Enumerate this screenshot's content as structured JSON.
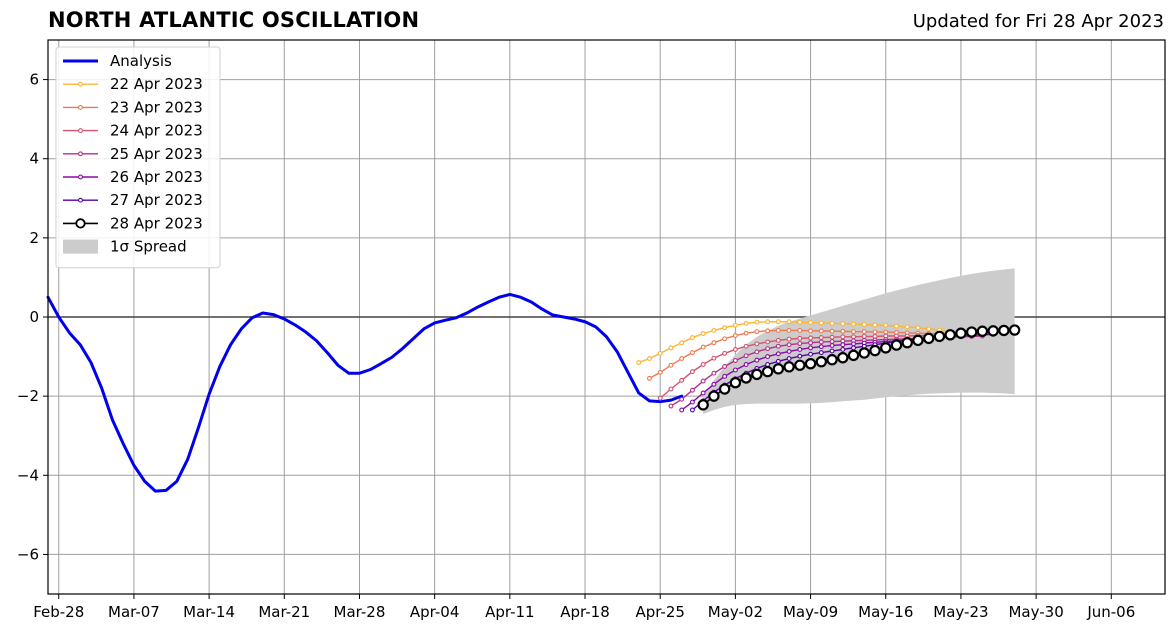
{
  "header": {
    "title": "NORTH ATLANTIC OSCILLATION",
    "subtitle": "Updated for Fri 28 Apr 2023"
  },
  "chart_data": {
    "type": "line",
    "title": "NORTH ATLANTIC OSCILLATION",
    "subtitle": "Updated for Fri 28 Apr 2023",
    "xlabel": "",
    "ylabel": "",
    "xlim": [
      "2023-02-27",
      "2023-06-11"
    ],
    "ylim": [
      -7,
      7
    ],
    "grid": true,
    "legend_position": "top-left",
    "x_ticks": [
      "2023-02-28",
      "2023-03-07",
      "2023-03-14",
      "2023-03-21",
      "2023-03-28",
      "2023-04-04",
      "2023-04-11",
      "2023-04-18",
      "2023-04-25",
      "2023-05-02",
      "2023-05-09",
      "2023-05-16",
      "2023-05-23",
      "2023-05-30",
      "2023-06-06"
    ],
    "x_tick_labels": [
      "Feb-28",
      "Mar-07",
      "Mar-14",
      "Mar-21",
      "Mar-28",
      "Apr-04",
      "Apr-11",
      "Apr-18",
      "Apr-25",
      "May-02",
      "May-09",
      "May-16",
      "May-23",
      "May-30",
      "Jun-06"
    ],
    "y_ticks": [
      -6,
      -4,
      -2,
      0,
      2,
      4,
      6
    ],
    "y_tick_labels": [
      "−6",
      "−4",
      "−2",
      "0",
      "2",
      "4",
      "6"
    ],
    "series": [
      {
        "name": "Analysis",
        "color": "#0000ee",
        "x": [
          "2023-02-27",
          "2023-02-28",
          "2023-03-01",
          "2023-03-02",
          "2023-03-03",
          "2023-03-04",
          "2023-03-05",
          "2023-03-06",
          "2023-03-07",
          "2023-03-08",
          "2023-03-09",
          "2023-03-10",
          "2023-03-11",
          "2023-03-12",
          "2023-03-13",
          "2023-03-14",
          "2023-03-15",
          "2023-03-16",
          "2023-03-17",
          "2023-03-18",
          "2023-03-19",
          "2023-03-20",
          "2023-03-21",
          "2023-03-22",
          "2023-03-23",
          "2023-03-24",
          "2023-03-25",
          "2023-03-26",
          "2023-03-27",
          "2023-03-28",
          "2023-03-29",
          "2023-03-30",
          "2023-03-31",
          "2023-04-01",
          "2023-04-02",
          "2023-04-03",
          "2023-04-04",
          "2023-04-05",
          "2023-04-06",
          "2023-04-07",
          "2023-04-08",
          "2023-04-09",
          "2023-04-10",
          "2023-04-11",
          "2023-04-12",
          "2023-04-13",
          "2023-04-14",
          "2023-04-15",
          "2023-04-16",
          "2023-04-17",
          "2023-04-18",
          "2023-04-19",
          "2023-04-20",
          "2023-04-21",
          "2023-04-22",
          "2023-04-23",
          "2023-04-24",
          "2023-04-25",
          "2023-04-26",
          "2023-04-27"
        ],
        "values": [
          0.5,
          0.0,
          -0.4,
          -0.7,
          -1.15,
          -1.8,
          -2.6,
          -3.2,
          -3.75,
          -4.15,
          -4.4,
          -4.38,
          -4.15,
          -3.6,
          -2.8,
          -1.95,
          -1.25,
          -0.7,
          -0.3,
          -0.02,
          0.1,
          0.06,
          -0.05,
          -0.2,
          -0.38,
          -0.6,
          -0.9,
          -1.22,
          -1.42,
          -1.42,
          -1.33,
          -1.18,
          -1.02,
          -0.8,
          -0.55,
          -0.3,
          -0.15,
          -0.08,
          -0.02,
          0.1,
          0.25,
          0.38,
          0.5,
          0.57,
          0.5,
          0.38,
          0.2,
          0.05,
          0.0,
          -0.05,
          -0.12,
          -0.25,
          -0.5,
          -0.88,
          -1.4,
          -1.92,
          -2.12,
          -2.14,
          -2.1,
          -2.0
        ]
      },
      {
        "name": "22 Apr 2023",
        "color": "#fdb42f",
        "x_start": "2023-04-23",
        "values": [
          -1.15,
          -1.05,
          -0.92,
          -0.78,
          -0.65,
          -0.52,
          -0.42,
          -0.34,
          -0.27,
          -0.21,
          -0.16,
          -0.13,
          -0.12,
          -0.12,
          -0.12,
          -0.13,
          -0.14,
          -0.15,
          -0.16,
          -0.17,
          -0.18,
          -0.19,
          -0.2,
          -0.21,
          -0.23,
          -0.25,
          -0.27,
          -0.3,
          -0.33,
          -0.37
        ]
      },
      {
        "name": "23 Apr 2023",
        "color": "#ed7953",
        "x_start": "2023-04-24",
        "values": [
          -1.55,
          -1.4,
          -1.22,
          -1.05,
          -0.9,
          -0.76,
          -0.65,
          -0.55,
          -0.47,
          -0.41,
          -0.37,
          -0.35,
          -0.34,
          -0.34,
          -0.34,
          -0.35,
          -0.35,
          -0.36,
          -0.36,
          -0.37,
          -0.37,
          -0.38,
          -0.38,
          -0.39,
          -0.4,
          -0.41,
          -0.42,
          -0.43,
          -0.44,
          -0.46
        ]
      },
      {
        "name": "24 Apr 2023",
        "color": "#d5546e",
        "x_start": "2023-04-25",
        "values": [
          -2.05,
          -1.82,
          -1.6,
          -1.38,
          -1.2,
          -1.04,
          -0.92,
          -0.82,
          -0.74,
          -0.68,
          -0.63,
          -0.59,
          -0.56,
          -0.54,
          -0.53,
          -0.52,
          -0.51,
          -0.5,
          -0.5,
          -0.49,
          -0.49,
          -0.48,
          -0.48,
          -0.48,
          -0.47,
          -0.47,
          -0.47,
          -0.46,
          -0.46,
          -0.45
        ]
      },
      {
        "name": "25 Apr 2023",
        "color": "#b52f8c",
        "x_start": "2023-04-26",
        "values": [
          -2.25,
          -2.08,
          -1.85,
          -1.62,
          -1.42,
          -1.25,
          -1.1,
          -0.98,
          -0.88,
          -0.8,
          -0.74,
          -0.7,
          -0.67,
          -0.65,
          -0.63,
          -0.62,
          -0.61,
          -0.6,
          -0.59,
          -0.58,
          -0.57,
          -0.56,
          -0.55,
          -0.54,
          -0.53,
          -0.52,
          -0.51,
          -0.5,
          -0.49,
          -0.48
        ]
      },
      {
        "name": "26 Apr 2023",
        "color": "#8b0aa5",
        "x_start": "2023-04-27",
        "values": [
          -2.35,
          -2.15,
          -1.92,
          -1.7,
          -1.5,
          -1.34,
          -1.2,
          -1.09,
          -1.0,
          -0.93,
          -0.87,
          -0.82,
          -0.78,
          -0.75,
          -0.72,
          -0.7,
          -0.68,
          -0.66,
          -0.64,
          -0.62,
          -0.6,
          -0.58,
          -0.56,
          -0.54,
          -0.52,
          -0.5,
          -0.48,
          -0.46,
          -0.45,
          -0.44
        ]
      },
      {
        "name": "27 Apr 2023",
        "color": "#5302a3",
        "x_start": "2023-04-28",
        "values": [
          -2.35,
          -2.12,
          -1.9,
          -1.72,
          -1.56,
          -1.42,
          -1.3,
          -1.2,
          -1.12,
          -1.05,
          -0.99,
          -0.94,
          -0.9,
          -0.86,
          -0.82,
          -0.78,
          -0.74,
          -0.7,
          -0.66,
          -0.62,
          -0.58,
          -0.55,
          -0.52,
          -0.49,
          -0.46,
          -0.43,
          -0.41,
          -0.39,
          -0.38,
          -0.37
        ]
      },
      {
        "name": "28 Apr 2023",
        "color": "#000000",
        "x_start": "2023-04-29",
        "values": [
          -2.22,
          -2.0,
          -1.82,
          -1.66,
          -1.54,
          -1.45,
          -1.38,
          -1.31,
          -1.26,
          -1.22,
          -1.18,
          -1.13,
          -1.08,
          -1.03,
          -0.97,
          -0.91,
          -0.85,
          -0.78,
          -0.71,
          -0.65,
          -0.59,
          -0.54,
          -0.49,
          -0.45,
          -0.41,
          -0.38,
          -0.36,
          -0.35,
          -0.34,
          -0.33
        ]
      }
    ],
    "spread": {
      "name": "1σ Spread",
      "color": "#cccccc",
      "x_start": "2023-04-29",
      "upper": [
        -2.0,
        -1.6,
        -1.25,
        -0.95,
        -0.7,
        -0.5,
        -0.35,
        -0.22,
        -0.12,
        -0.04,
        0.04,
        0.12,
        0.2,
        0.28,
        0.36,
        0.44,
        0.52,
        0.6,
        0.67,
        0.74,
        0.81,
        0.87,
        0.93,
        0.99,
        1.04,
        1.09,
        1.13,
        1.17,
        1.2,
        1.23
      ],
      "lower": [
        -2.45,
        -2.35,
        -2.27,
        -2.22,
        -2.2,
        -2.19,
        -2.19,
        -2.19,
        -2.19,
        -2.19,
        -2.18,
        -2.17,
        -2.15,
        -2.13,
        -2.11,
        -2.09,
        -2.06,
        -2.03,
        -2.0,
        -1.98,
        -1.96,
        -1.94,
        -1.93,
        -1.92,
        -1.91,
        -1.91,
        -1.91,
        -1.92,
        -1.93,
        -1.95
      ]
    }
  }
}
